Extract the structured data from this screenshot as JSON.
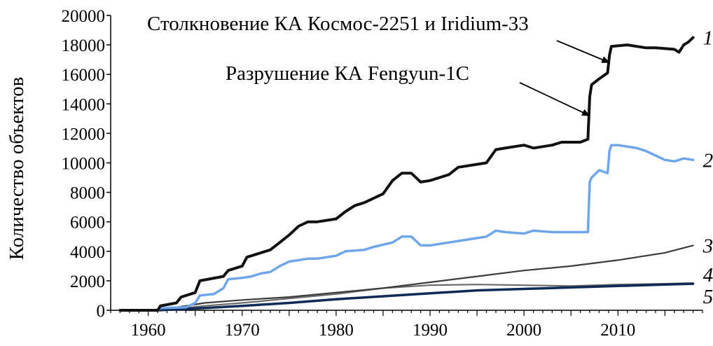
{
  "chart_data": {
    "type": "line",
    "title": "",
    "xlabel": "",
    "ylabel": "Количество объектов",
    "xlim": [
      1956,
      2019
    ],
    "ylim": [
      0,
      20000
    ],
    "xticks": [
      1960,
      1970,
      1980,
      1990,
      2000,
      2010
    ],
    "yticks": [
      0,
      2000,
      4000,
      6000,
      8000,
      10000,
      12000,
      14000,
      16000,
      18000,
      20000
    ],
    "grid": false,
    "annotations": [
      {
        "text": "Столкновение КА Космос-2251 и Iridium-33",
        "x": 2009.1,
        "y": 16800
      },
      {
        "text": "Разрушение КА Fengyun-1C",
        "x": 2007.0,
        "y": 13200
      }
    ],
    "series": [
      {
        "label": "1",
        "color": "#111111",
        "x": [
          1957,
          1961,
          1961.3,
          1963,
          1963.5,
          1965,
          1965.5,
          1968,
          1968.5,
          1970,
          1970.5,
          1973,
          1974,
          1975,
          1976,
          1977,
          1978,
          1980,
          1981,
          1982,
          1983,
          1985,
          1986,
          1987,
          1988,
          1989,
          1990,
          1992,
          1993,
          1995,
          1996,
          1997,
          1998,
          2000,
          2001,
          2003,
          2004,
          2006,
          2006.8,
          2007.0,
          2007.2,
          2008,
          2008.9,
          2009.1,
          2009.3,
          2011,
          2013,
          2014,
          2016,
          2016.5,
          2017,
          2017.5,
          2018
        ],
        "values": [
          0,
          0,
          300,
          500,
          900,
          1200,
          2000,
          2300,
          2700,
          3000,
          3600,
          4100,
          4600,
          5100,
          5700,
          6000,
          6000,
          6200,
          6700,
          7100,
          7300,
          7900,
          8800,
          9300,
          9300,
          8700,
          8800,
          9200,
          9700,
          9900,
          10000,
          10900,
          11000,
          11200,
          11000,
          11200,
          11400,
          11400,
          11600,
          14500,
          15300,
          15700,
          16100,
          17300,
          17900,
          18000,
          17800,
          17800,
          17700,
          17500,
          18000,
          18200,
          18500
        ]
      },
      {
        "label": "2",
        "color": "#6fa6ea",
        "x": [
          1957,
          1961,
          1961.3,
          1964,
          1965,
          1965.5,
          1967,
          1968,
          1968.5,
          1970,
          1971,
          1972,
          1973,
          1974,
          1975,
          1977,
          1978,
          1980,
          1981,
          1983,
          1984,
          1986,
          1987,
          1988,
          1989,
          1990,
          1992,
          1993,
          1995,
          1996,
          1997,
          1998,
          2000,
          2001,
          2003,
          2004,
          2006,
          2006.8,
          2007.0,
          2007.2,
          2008,
          2008.9,
          2009.1,
          2009.3,
          2010,
          2012,
          2013,
          2014,
          2015,
          2016,
          2017,
          2018
        ],
        "values": [
          0,
          0,
          150,
          200,
          500,
          1000,
          1100,
          1500,
          2100,
          2200,
          2300,
          2500,
          2600,
          3000,
          3300,
          3500,
          3500,
          3700,
          4000,
          4100,
          4300,
          4600,
          5000,
          5000,
          4400,
          4400,
          4600,
          4700,
          4900,
          5000,
          5400,
          5300,
          5200,
          5400,
          5300,
          5300,
          5300,
          5300,
          8700,
          9000,
          9500,
          9300,
          10800,
          11200,
          11200,
          11000,
          10800,
          10500,
          10200,
          10100,
          10300,
          10200
        ]
      },
      {
        "label": "3",
        "color": "#3d3d3d",
        "x": [
          1957,
          1961,
          1963,
          1966,
          1970,
          1975,
          1980,
          1985,
          1990,
          1995,
          2000,
          2005,
          2010,
          2015,
          2018
        ],
        "values": [
          0,
          0,
          200,
          500,
          700,
          900,
          1200,
          1500,
          1900,
          2300,
          2700,
          3000,
          3400,
          3900,
          4400
        ]
      },
      {
        "label": "4",
        "color": "#6a6a6a",
        "x": [
          1957,
          1961,
          1963,
          1966,
          1970,
          1975,
          1980,
          1985,
          1990,
          1995,
          2000,
          2005,
          2010,
          2015,
          2018
        ],
        "values": [
          0,
          0,
          100,
          300,
          500,
          800,
          1100,
          1500,
          1700,
          1750,
          1700,
          1650,
          1750,
          1800,
          1850
        ]
      },
      {
        "label": "5",
        "color": "#0f2a55",
        "x": [
          1957,
          1961,
          1963,
          1966,
          1970,
          1975,
          1980,
          1985,
          1990,
          1995,
          2000,
          2005,
          2010,
          2015,
          2018
        ],
        "values": [
          0,
          0,
          60,
          150,
          300,
          500,
          750,
          950,
          1150,
          1350,
          1450,
          1550,
          1650,
          1750,
          1800
        ]
      }
    ]
  }
}
